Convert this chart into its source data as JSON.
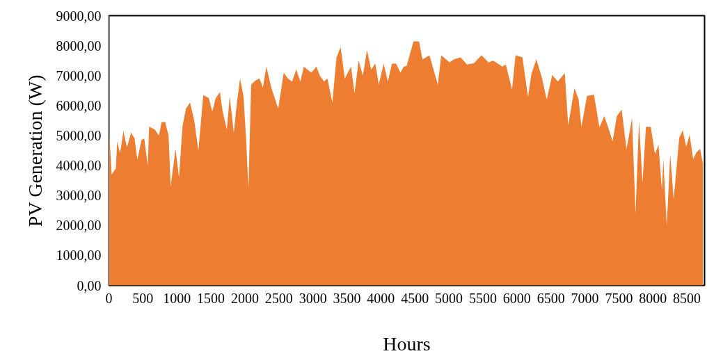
{
  "chart_data": {
    "type": "area",
    "xlabel": "Hours",
    "ylabel": "PV Generation (W)",
    "grid": false,
    "xlim": [
      0,
      8760
    ],
    "ylim": [
      0,
      9000
    ],
    "xticks": [
      0,
      500,
      1000,
      1500,
      2000,
      2500,
      3000,
      3500,
      4000,
      4500,
      5000,
      5500,
      6000,
      6500,
      7000,
      7500,
      8000,
      8500
    ],
    "yticks": [
      {
        "value": 0,
        "label": "0,00"
      },
      {
        "value": 1000,
        "label": "1000,00"
      },
      {
        "value": 2000,
        "label": "2000,00"
      },
      {
        "value": 3000,
        "label": "3000,00"
      },
      {
        "value": 4000,
        "label": "4000,00"
      },
      {
        "value": 5000,
        "label": "5000,00"
      },
      {
        "value": 6000,
        "label": "6000,00"
      },
      {
        "value": 7000,
        "label": "7000,00"
      },
      {
        "value": 8000,
        "label": "8000,00"
      },
      {
        "value": 9000,
        "label": "9000,00"
      }
    ],
    "x": [
      0,
      41,
      102,
      122,
      163,
      214,
      265,
      327,
      378,
      418,
      480,
      520,
      571,
      592,
      673,
      735,
      776,
      827,
      878,
      908,
      980,
      1031,
      1082,
      1133,
      1194,
      1255,
      1316,
      1388,
      1469,
      1520,
      1571,
      1633,
      1673,
      1735,
      1776,
      1837,
      1878,
      1929,
      1980,
      2020,
      2051,
      2092,
      2163,
      2214,
      2265,
      2316,
      2388,
      2490,
      2571,
      2633,
      2694,
      2755,
      2816,
      2867,
      2918,
      2980,
      3051,
      3102,
      3163,
      3214,
      3286,
      3347,
      3408,
      3469,
      3561,
      3612,
      3673,
      3735,
      3796,
      3857,
      3918,
      3969,
      4041,
      4102,
      4163,
      4224,
      4286,
      4337,
      4378,
      4480,
      4561,
      4612,
      4714,
      4837,
      4888,
      5010,
      5071,
      5173,
      5265,
      5367,
      5480,
      5582,
      5653,
      5786,
      5837,
      5929,
      5980,
      6082,
      6163,
      6214,
      6286,
      6367,
      6439,
      6520,
      6602,
      6704,
      6755,
      6847,
      6908,
      6949,
      7031,
      7133,
      7214,
      7286,
      7357,
      7408,
      7469,
      7541,
      7612,
      7643,
      7694,
      7745,
      7796,
      7847,
      7898,
      7969,
      8031,
      8082,
      8133,
      8153,
      8204,
      8255,
      8306,
      8337,
      8388,
      8439,
      8490,
      8541,
      8592,
      8643,
      8694,
      8735
    ],
    "series": [
      {
        "color": "#ed7d31",
        "values": [
          5300,
          3700,
          3900,
          4800,
          4400,
          5150,
          4600,
          5100,
          4900,
          4200,
          4850,
          4900,
          4000,
          5300,
          5200,
          5000,
          5450,
          5450,
          5000,
          3300,
          4550,
          3600,
          5300,
          5900,
          6100,
          5500,
          4500,
          6350,
          6250,
          5800,
          6250,
          6450,
          5800,
          5200,
          6300,
          5100,
          6000,
          6900,
          6300,
          4800,
          3200,
          6700,
          6850,
          6900,
          6600,
          7300,
          6600,
          5900,
          7100,
          6900,
          6800,
          7200,
          6800,
          7300,
          7200,
          7100,
          7300,
          7000,
          6800,
          6900,
          6100,
          7600,
          7950,
          6900,
          7300,
          6400,
          7500,
          7000,
          7850,
          7200,
          7400,
          6700,
          7400,
          6800,
          7400,
          7400,
          7100,
          7300,
          7320,
          8140,
          8140,
          7540,
          7680,
          6700,
          7680,
          7440,
          7540,
          7610,
          7370,
          7410,
          7680,
          7440,
          7500,
          7300,
          7370,
          6530,
          7680,
          7610,
          6290,
          7060,
          7540,
          6940,
          6200,
          7020,
          6800,
          7080,
          5340,
          6580,
          6200,
          5290,
          6320,
          6370,
          5270,
          5650,
          5170,
          4810,
          5650,
          5860,
          4550,
          4930,
          5580,
          2390,
          5500,
          3420,
          5290,
          5290,
          4380,
          4690,
          3180,
          4210,
          1990,
          4380,
          2870,
          3660,
          4930,
          5170,
          4620,
          5030,
          4210,
          4450,
          4550,
          4070
        ]
      }
    ]
  }
}
